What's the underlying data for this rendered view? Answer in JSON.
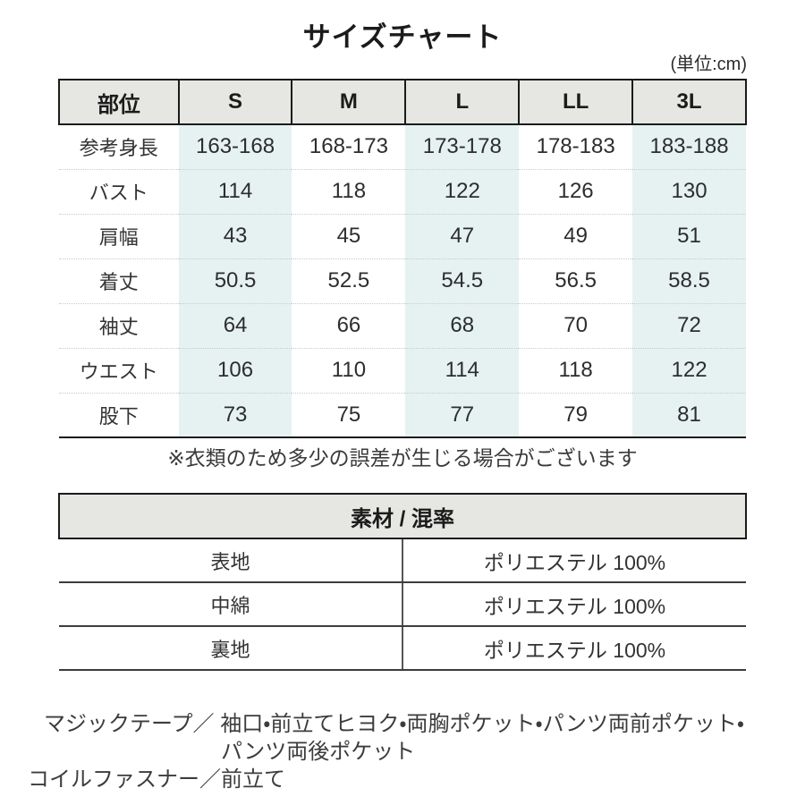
{
  "title": "サイズチャート",
  "unit_note": "(単位:cm)",
  "size_table": {
    "header": [
      "部位",
      "S",
      "M",
      "L",
      "LL",
      "3L"
    ],
    "rows": [
      {
        "label": "参考身長",
        "values": [
          "163-168",
          "168-173",
          "173-178",
          "178-183",
          "183-188"
        ]
      },
      {
        "label": "バスト",
        "values": [
          "114",
          "118",
          "122",
          "126",
          "130"
        ]
      },
      {
        "label": "肩幅",
        "values": [
          "43",
          "45",
          "47",
          "49",
          "51"
        ]
      },
      {
        "label": "着丈",
        "values": [
          "50.5",
          "52.5",
          "54.5",
          "56.5",
          "58.5"
        ]
      },
      {
        "label": "袖丈",
        "values": [
          "64",
          "66",
          "68",
          "70",
          "72"
        ]
      },
      {
        "label": "ウエスト",
        "values": [
          "106",
          "110",
          "114",
          "118",
          "122"
        ]
      },
      {
        "label": "股下",
        "values": [
          "73",
          "75",
          "77",
          "79",
          "81"
        ]
      }
    ],
    "note": "※衣類のため多少の誤差が生じる場合がございます"
  },
  "material_table": {
    "header": "素材 / 混率",
    "rows": [
      {
        "label": "表地",
        "value": "ポリエステル 100%"
      },
      {
        "label": "中綿",
        "value": "ポリエステル 100%"
      },
      {
        "label": "裏地",
        "value": "ポリエステル 100%"
      }
    ]
  },
  "features": {
    "line1": "マジックテープ／ 袖口・前立てヒヨク・両胸ポケット・パンツ両前ポケット・",
    "line2": "パンツ両後ポケット",
    "line3": "コイルファスナー／前立て"
  },
  "colors": {
    "header_bg": "#e6e6e2",
    "stripe_bg": "#e5f2f1",
    "border": "#1b1b1b",
    "dotted_divider": "#c7cccc",
    "text": "#2d2d2d"
  }
}
